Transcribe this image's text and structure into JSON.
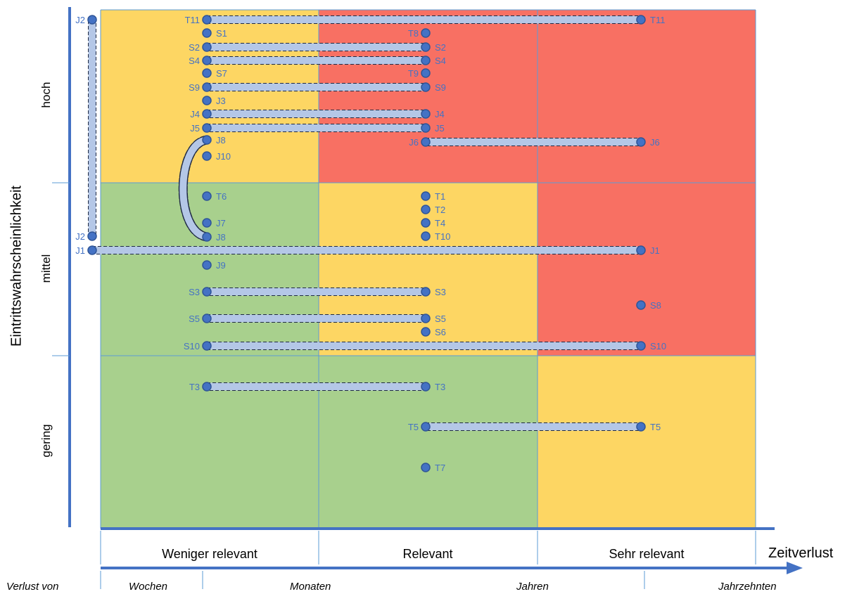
{
  "axes": {
    "y_title": "Eintrittswahrscheinlichkeit",
    "x_title": "Zeitverlust",
    "rows": [
      "hoch",
      "mittel",
      "gering"
    ],
    "columns": [
      "Weniger relevant",
      "Relevant",
      "Sehr relevant"
    ],
    "loss_prefix": "Verlust von",
    "loss_units": [
      "Wochen",
      "Monaten",
      "Jahren",
      "Jahrzehnten"
    ]
  },
  "colors": {
    "yellow": "#FDD663",
    "red": "#F87063",
    "green": "#A8D08D",
    "grid": "#5B9BD5",
    "axis": "#4472C4",
    "node_fill": "#4472C4",
    "node_stroke": "#2F5597",
    "bar_fill": "#B4C7E7",
    "label": "#4472C4"
  },
  "cells": [
    [
      "yellow",
      "red",
      "red"
    ],
    [
      "green",
      "yellow",
      "red"
    ],
    [
      "green",
      "green",
      "yellow"
    ]
  ],
  "points": [
    {
      "label": "T11",
      "side": "left"
    },
    {
      "label": "T11",
      "side": "right"
    },
    {
      "label": "S1",
      "side": "right"
    },
    {
      "label": "T8",
      "side": "left"
    },
    {
      "label": "S2",
      "side": "left"
    },
    {
      "label": "S2",
      "side": "right"
    },
    {
      "label": "S4",
      "side": "left"
    },
    {
      "label": "S4",
      "side": "right"
    },
    {
      "label": "S7",
      "side": "right"
    },
    {
      "label": "T9",
      "side": "left"
    },
    {
      "label": "S9",
      "side": "left"
    },
    {
      "label": "S9",
      "side": "right"
    },
    {
      "label": "J3",
      "side": "right"
    },
    {
      "label": "J4",
      "side": "left"
    },
    {
      "label": "J4",
      "side": "right"
    },
    {
      "label": "J5",
      "side": "left"
    },
    {
      "label": "J5",
      "side": "right"
    },
    {
      "label": "J8",
      "side": "right"
    },
    {
      "label": "J6",
      "side": "left"
    },
    {
      "label": "J6",
      "side": "right"
    },
    {
      "label": "J10",
      "side": "right"
    },
    {
      "label": "J2",
      "side": "left"
    },
    {
      "label": "J2",
      "side": "left"
    },
    {
      "label": "T6",
      "side": "right"
    },
    {
      "label": "T1",
      "side": "right"
    },
    {
      "label": "T2",
      "side": "right"
    },
    {
      "label": "J7",
      "side": "right"
    },
    {
      "label": "T4",
      "side": "right"
    },
    {
      "label": "J8",
      "side": "right"
    },
    {
      "label": "T10",
      "side": "right"
    },
    {
      "label": "J1",
      "side": "left"
    },
    {
      "label": "J1",
      "side": "right"
    },
    {
      "label": "J9",
      "side": "right"
    },
    {
      "label": "S3",
      "side": "left"
    },
    {
      "label": "S3",
      "side": "right"
    },
    {
      "label": "S8",
      "side": "right"
    },
    {
      "label": "S5",
      "side": "left"
    },
    {
      "label": "S5",
      "side": "right"
    },
    {
      "label": "S6",
      "side": "right"
    },
    {
      "label": "S10",
      "side": "left"
    },
    {
      "label": "S10",
      "side": "right"
    },
    {
      "label": "T3",
      "side": "left"
    },
    {
      "label": "T3",
      "side": "right"
    },
    {
      "label": "T5",
      "side": "left"
    },
    {
      "label": "T5",
      "side": "right"
    },
    {
      "label": "T7",
      "side": "right"
    }
  ]
}
